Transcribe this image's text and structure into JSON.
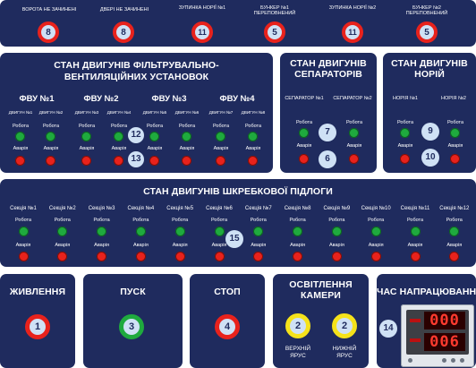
{
  "alarms": [
    {
      "label": "ВОРОТА НЕ ЗАЧИНЕНІ",
      "num": "8"
    },
    {
      "label": "ДВЕРІ НЕ ЗАЧИНЕНІ",
      "num": "8"
    },
    {
      "label": "ЗУПИНКА НОРІЇ №1",
      "num": "11"
    },
    {
      "label": "БУНКЕР №1 ПЕРЕПОВНЕНИЙ",
      "num": "5"
    },
    {
      "label": "ЗУПИНКА НОРІЇ №2",
      "num": "11"
    },
    {
      "label": "БУНКЕР №2 ПЕРЕПОВНЕНИЙ",
      "num": "5"
    }
  ],
  "fvu": {
    "title": "СТАН ДВИГУНІВ ФІЛЬТРУВАЛЬНО-ВЕНТИЛЯЦІЙНИХ УСТАНОВОК",
    "units": [
      "ФВУ №1",
      "ФВУ №2",
      "ФВУ №3",
      "ФВУ №4"
    ],
    "motors": [
      "ДВИГУН №1",
      "ДВИГУН №2",
      "ДВИГУН №3",
      "ДВИГУН №4",
      "ДВИГУН №5",
      "ДВИГУН №6",
      "ДВИГУН №7",
      "ДВИГУН №8"
    ],
    "run_label": "Робота",
    "fault_label": "Аварія",
    "badge_run": "12",
    "badge_fault": "13"
  },
  "separators": {
    "title": "СТАН ДВИГУНІВ СЕПАРАТОРІВ",
    "items": [
      "СЕПАРАТОР №1",
      "СЕПАРАТОР №2"
    ],
    "run_label": "Робота",
    "fault_label": "Аварія",
    "badge_run": "7",
    "badge_fault": "6"
  },
  "norias": {
    "title": "СТАН ДВИГУНІВ НОРІЙ",
    "items": [
      "НОРІЯ №1",
      "НОРІЯ №2"
    ],
    "run_label": "Робота",
    "fault_label": "Аварія",
    "badge_run": "9",
    "badge_fault": "10"
  },
  "floor": {
    "title": "СТАН ДВИГУНІВ ШКРЕБКОВОЇ ПІДЛОГИ",
    "sections": [
      "Секція №1",
      "Секція №2",
      "Секція №3",
      "Секція №4",
      "Секція №5",
      "Секція №6",
      "Секція №7",
      "Секція №8",
      "Секція №9",
      "Секція №10",
      "Секція №11",
      "Секція №12"
    ],
    "run_label": "Робота",
    "fault_label": "Аварія",
    "badge": "15"
  },
  "power": {
    "title": "ЖИВЛЕННЯ",
    "num": "1"
  },
  "start": {
    "title": "ПУСК",
    "num": "3"
  },
  "stop": {
    "title": "СТОП",
    "num": "4"
  },
  "lighting": {
    "title": "ОСВІТЛЕННЯ КАМЕРИ",
    "upper_num": "2",
    "upper_label": "ВЕРХНІЙ ЯРУС",
    "lower_num": "2",
    "lower_label": "НИЖНІЙ ЯРУС"
  },
  "runtime": {
    "title": "ЧАС НАПРАЦЮВАННЯ",
    "num": "14",
    "value_top": "000",
    "value_bottom": "006"
  },
  "colors": {
    "panel": "#1f2b5e",
    "green": "#1faa3e",
    "red": "#e8221c",
    "yellow": "#f5e21a",
    "badge": "#cfe1f5"
  }
}
